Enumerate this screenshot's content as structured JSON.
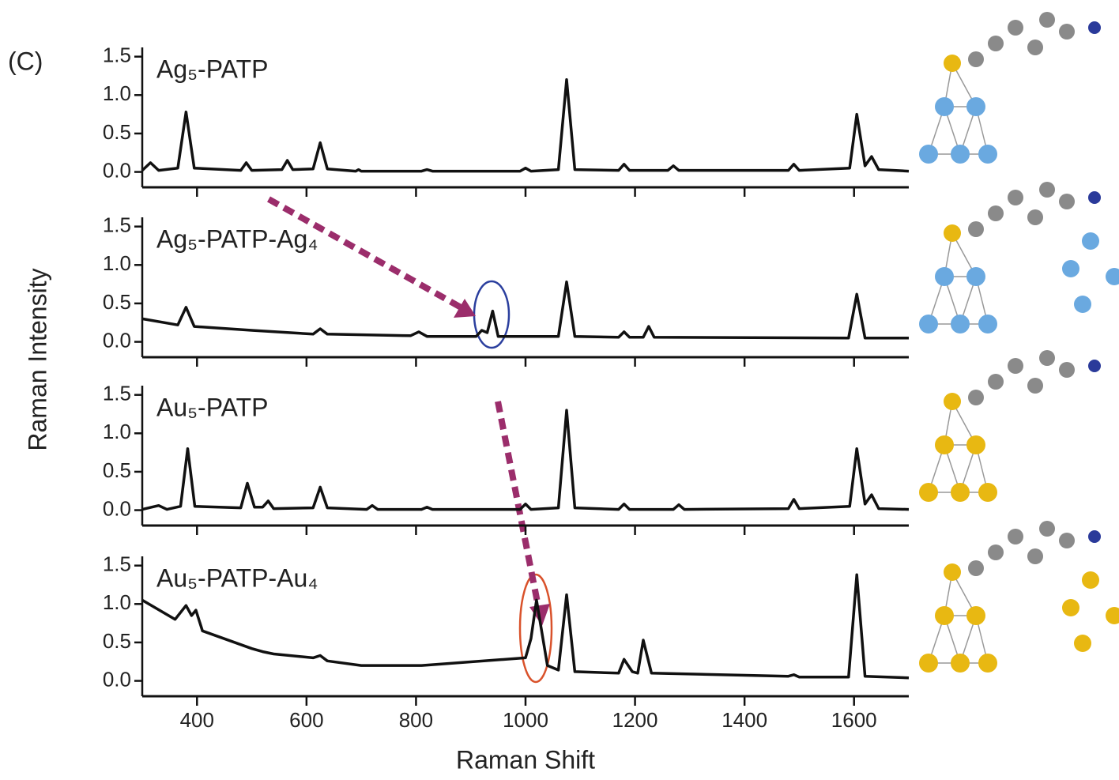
{
  "panel_label": "(C)",
  "xlabel": "Raman Shift",
  "ylabel": "Raman Intensity",
  "chart_data": [
    {
      "type": "line",
      "title": "Ag₅-PATP",
      "color": "#111111",
      "x": [
        300,
        315,
        330,
        365,
        380,
        395,
        480,
        490,
        500,
        555,
        565,
        575,
        612,
        625,
        638,
        690,
        695,
        700,
        810,
        820,
        830,
        990,
        1000,
        1010,
        1060,
        1075,
        1090,
        1170,
        1180,
        1190,
        1260,
        1270,
        1280,
        1480,
        1490,
        1500,
        1592,
        1605,
        1620,
        1632,
        1645,
        1700
      ],
      "values": [
        0.02,
        0.12,
        0.02,
        0.05,
        0.78,
        0.05,
        0.02,
        0.12,
        0.02,
        0.03,
        0.15,
        0.03,
        0.04,
        0.38,
        0.04,
        0.01,
        0.03,
        0.01,
        0.01,
        0.03,
        0.01,
        0.01,
        0.05,
        0.01,
        0.03,
        1.2,
        0.03,
        0.02,
        0.1,
        0.02,
        0.02,
        0.08,
        0.02,
        0.02,
        0.1,
        0.02,
        0.05,
        0.75,
        0.08,
        0.2,
        0.03,
        0.01
      ],
      "xlim": [
        300,
        1700
      ],
      "xticks": [
        400,
        600,
        800,
        1000,
        1200,
        1400,
        1600
      ],
      "ylim": [
        -0.2,
        1.62
      ],
      "yticks": [
        {
          "value": 0,
          "label": "0.0"
        },
        {
          "value": 0.5,
          "label": "0.5"
        },
        {
          "value": 1,
          "label": "1.0"
        },
        {
          "value": 1.5,
          "label": "1.5"
        }
      ]
    },
    {
      "type": "line",
      "title": "Ag₅-PATP-Ag₄",
      "color": "#111111",
      "x": [
        300,
        365,
        380,
        395,
        500,
        612,
        625,
        638,
        790,
        805,
        820,
        910,
        920,
        930,
        940,
        950,
        1060,
        1075,
        1090,
        1170,
        1180,
        1190,
        1215,
        1225,
        1235,
        1590,
        1605,
        1620,
        1700
      ],
      "values": [
        0.3,
        0.22,
        0.45,
        0.2,
        0.15,
        0.1,
        0.17,
        0.1,
        0.08,
        0.13,
        0.07,
        0.07,
        0.15,
        0.12,
        0.4,
        0.07,
        0.07,
        0.78,
        0.07,
        0.06,
        0.13,
        0.06,
        0.06,
        0.2,
        0.06,
        0.05,
        0.62,
        0.05,
        0.05
      ],
      "xlim": [
        300,
        1700
      ],
      "xticks": [
        400,
        600,
        800,
        1000,
        1200,
        1400,
        1600
      ],
      "ylim": [
        -0.2,
        1.62
      ],
      "yticks": [
        {
          "value": 0,
          "label": "0.0"
        },
        {
          "value": 0.5,
          "label": "0.5"
        },
        {
          "value": 1,
          "label": "1.0"
        },
        {
          "value": 1.5,
          "label": "1.5"
        }
      ]
    },
    {
      "type": "line",
      "title": "Au₅-PATP",
      "color": "#111111",
      "x": [
        300,
        330,
        345,
        370,
        383,
        396,
        480,
        492,
        505,
        520,
        530,
        540,
        612,
        625,
        638,
        710,
        720,
        730,
        810,
        820,
        830,
        990,
        1000,
        1010,
        1060,
        1075,
        1090,
        1170,
        1180,
        1190,
        1270,
        1280,
        1290,
        1480,
        1490,
        1500,
        1592,
        1605,
        1620,
        1632,
        1645,
        1700
      ],
      "values": [
        0.01,
        0.06,
        0.01,
        0.05,
        0.8,
        0.05,
        0.03,
        0.35,
        0.04,
        0.04,
        0.12,
        0.02,
        0.03,
        0.3,
        0.03,
        0.01,
        0.06,
        0.01,
        0.01,
        0.04,
        0.01,
        0.01,
        0.08,
        0.01,
        0.03,
        1.3,
        0.03,
        0.01,
        0.08,
        0.01,
        0.01,
        0.07,
        0.01,
        0.02,
        0.14,
        0.02,
        0.05,
        0.8,
        0.08,
        0.2,
        0.02,
        0.01
      ],
      "xlim": [
        300,
        1700
      ],
      "xticks": [
        400,
        600,
        800,
        1000,
        1200,
        1400,
        1600
      ],
      "ylim": [
        -0.2,
        1.62
      ],
      "yticks": [
        {
          "value": 0,
          "label": "0.0"
        },
        {
          "value": 0.5,
          "label": "0.5"
        },
        {
          "value": 1,
          "label": "1.0"
        },
        {
          "value": 1.5,
          "label": "1.5"
        }
      ]
    },
    {
      "type": "line",
      "title": "Au₅-PATP-Au₄",
      "color": "#111111",
      "x": [
        300,
        360,
        380,
        390,
        398,
        410,
        500,
        520,
        540,
        612,
        625,
        638,
        700,
        810,
        1000,
        1010,
        1020,
        1040,
        1060,
        1075,
        1090,
        1170,
        1180,
        1195,
        1205,
        1215,
        1230,
        1480,
        1490,
        1500,
        1590,
        1605,
        1620,
        1700
      ],
      "values": [
        1.05,
        0.8,
        0.98,
        0.85,
        0.92,
        0.65,
        0.42,
        0.38,
        0.35,
        0.3,
        0.33,
        0.26,
        0.2,
        0.2,
        0.3,
        0.55,
        1.05,
        0.2,
        0.14,
        1.12,
        0.12,
        0.1,
        0.28,
        0.12,
        0.1,
        0.53,
        0.1,
        0.06,
        0.08,
        0.05,
        0.05,
        1.38,
        0.06,
        0.04
      ],
      "xlim": [
        300,
        1700
      ],
      "xticks": [
        400,
        600,
        800,
        1000,
        1200,
        1400,
        1600
      ],
      "ylim": [
        -0.2,
        1.62
      ],
      "yticks": [
        {
          "value": 0,
          "label": "0.0"
        },
        {
          "value": 0.5,
          "label": "0.5"
        },
        {
          "value": 1,
          "label": "1.0"
        },
        {
          "value": 1.5,
          "label": "1.5"
        }
      ]
    }
  ]
}
